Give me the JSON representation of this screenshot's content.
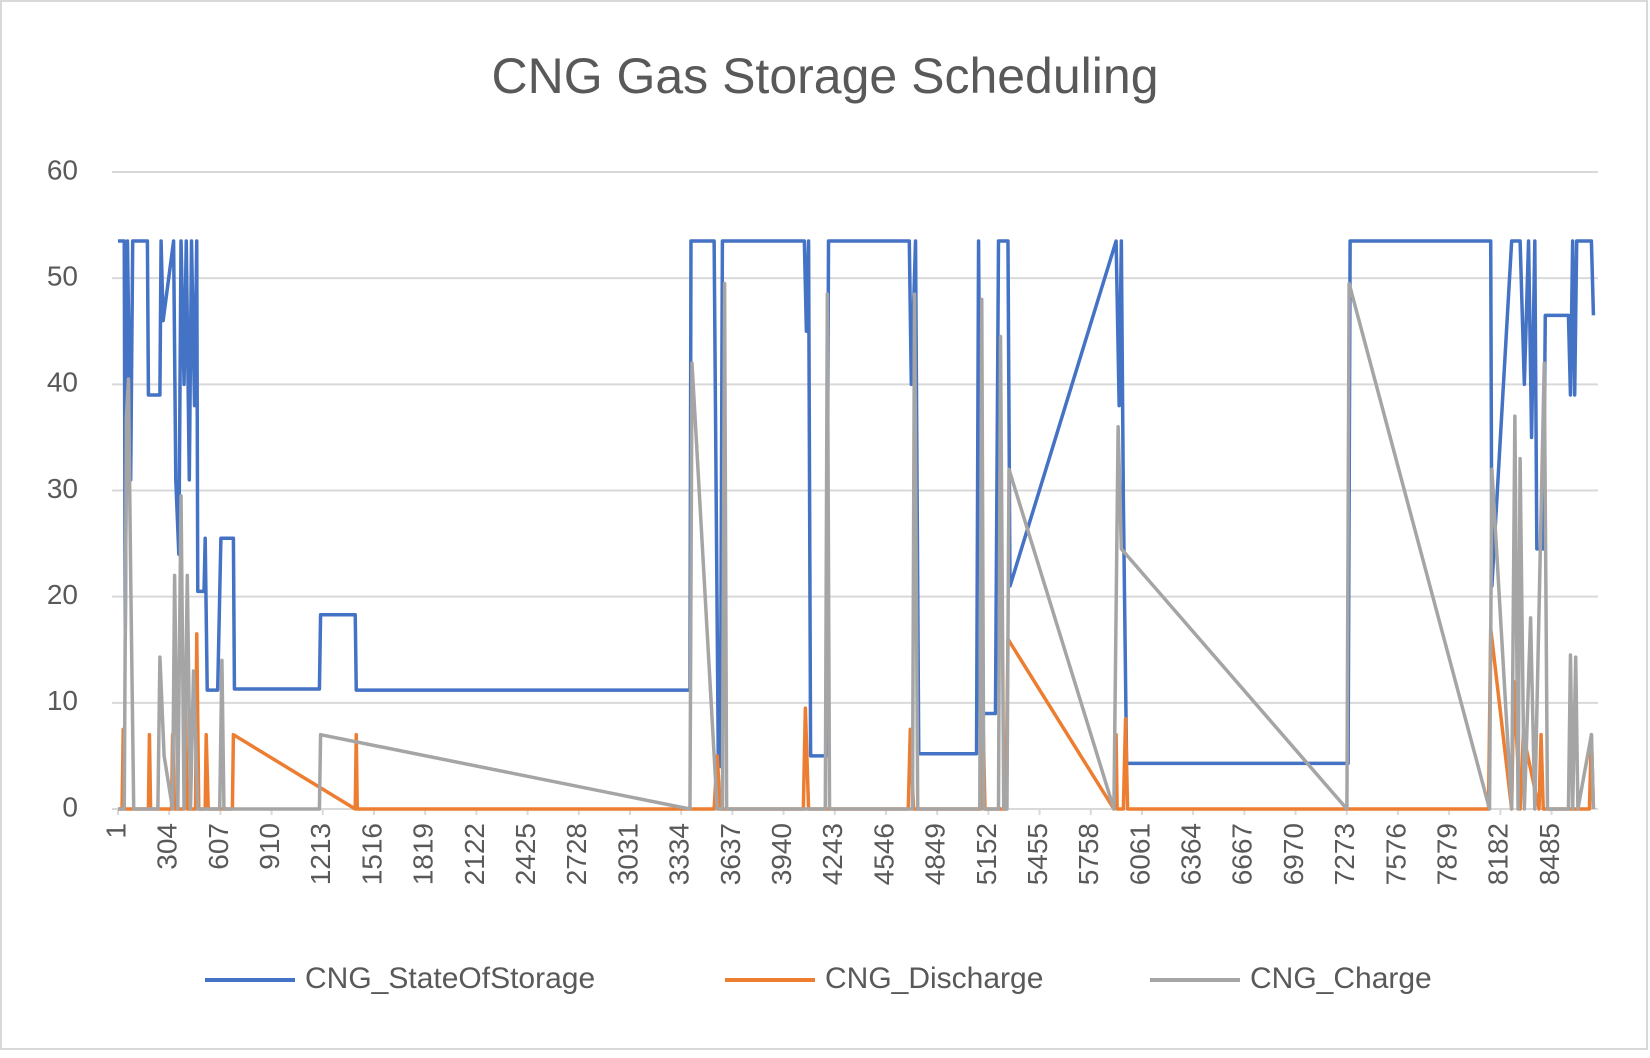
{
  "chart_data": {
    "type": "line",
    "title": "CNG Gas Storage Scheduling",
    "xlim": [
      1,
      8760
    ],
    "xticks": [
      1,
      304,
      607,
      910,
      1213,
      1516,
      1819,
      2122,
      2425,
      2728,
      3031,
      3334,
      3637,
      3940,
      4243,
      4546,
      4849,
      5152,
      5455,
      5758,
      6061,
      6364,
      6667,
      6970,
      7273,
      7576,
      7879,
      8182,
      8485
    ],
    "ylim": [
      0,
      60
    ],
    "yticks": [
      0,
      10,
      20,
      30,
      40,
      50,
      60
    ],
    "grid": true,
    "legend": "bottom",
    "series": [
      {
        "name": "CNG_StateOfStorage",
        "color": "#4472c4",
        "x": [
          1,
          38,
          44,
          57,
          76,
          88,
          175,
          181,
          249,
          256,
          268,
          330,
          343,
          361,
          374,
          392,
          405,
          423,
          436,
          454,
          467,
          473,
          510,
          517,
          529,
          591,
          610,
          684,
          690,
          1193,
          1200,
          1405,
          1411,
          3386,
          3392,
          3529,
          3554,
          3566,
          3578,
          4063,
          4075,
          4088,
          4100,
          4193,
          4206,
          4684,
          4696,
          4721,
          4740,
          5082,
          5094,
          5113,
          5194,
          5212,
          5268,
          5280,
          5908,
          5926,
          5939,
          5951,
          5970,
          7281,
          7293,
          8125,
          8132,
          8249,
          8299,
          8324,
          8349,
          8367,
          8386,
          8398,
          8436,
          8448,
          8585,
          8597,
          8610,
          8622,
          8634,
          8721,
          8733
        ],
        "values": [
          53.5,
          53.5,
          16,
          53.5,
          31,
          53.5,
          53.5,
          39,
          39,
          53.5,
          46,
          53.5,
          31,
          24,
          53.5,
          40,
          53.5,
          31,
          53.5,
          38,
          53.5,
          20.5,
          20.5,
          25.5,
          11.2,
          11.2,
          25.5,
          25.5,
          11.3,
          11.3,
          18.3,
          18.3,
          11.2,
          11.2,
          53.5,
          53.5,
          4,
          4,
          53.5,
          53.5,
          45,
          53.5,
          5,
          5,
          53.5,
          53.5,
          40,
          53.5,
          5.2,
          5.2,
          53.5,
          9,
          9,
          53.5,
          53.5,
          21,
          53.5,
          38,
          53.5,
          29,
          4.3,
          4.3,
          53.5,
          53.5,
          21,
          53.5,
          53.5,
          40,
          53.5,
          35,
          53.5,
          24.5,
          24.5,
          46.5,
          46.5,
          39,
          53.5,
          39,
          53.5,
          53.5,
          46.5
        ]
      },
      {
        "name": "CNG_Discharge",
        "color": "#ed7d31",
        "x": [
          1,
          25,
          32,
          38,
          181,
          187,
          194,
          318,
          324,
          336,
          392,
          399,
          411,
          460,
          467,
          479,
          517,
          523,
          535,
          678,
          684,
          1405,
          1411,
          1417,
          3529,
          3547,
          3566,
          4057,
          4069,
          4088,
          4678,
          4690,
          4709,
          5107,
          5119,
          5132,
          5256,
          5268,
          5895,
          5908,
          5914,
          5951,
          5964,
          5976,
          8112,
          8125,
          8249,
          8262,
          8299,
          8318,
          8411,
          8423,
          8436,
          8709,
          8721,
          8733
        ],
        "values": [
          0,
          0,
          7.5,
          0,
          0,
          7,
          0,
          0,
          7,
          0,
          0,
          10,
          0,
          0,
          16.5,
          0,
          0,
          7,
          0,
          0,
          7,
          0,
          7,
          0,
          0,
          5,
          0,
          0,
          9.5,
          0,
          0,
          7.5,
          0,
          0,
          9.5,
          0,
          0,
          16,
          0,
          7,
          0,
          0,
          8.5,
          0,
          0,
          17,
          0,
          12,
          0,
          7,
          0,
          7,
          0,
          0,
          7,
          0
        ]
      },
      {
        "name": "CNG_Charge",
        "color": "#a5a5a5",
        "x": [
          1,
          38,
          51,
          63,
          76,
          94,
          237,
          249,
          274,
          324,
          336,
          355,
          374,
          392,
          411,
          430,
          448,
          473,
          603,
          616,
          628,
          1193,
          1200,
          3386,
          3398,
          3547,
          3578,
          3591,
          3603,
          4187,
          4199,
          4212,
          4703,
          4715,
          4734,
          5101,
          5113,
          5125,
          5212,
          5224,
          5243,
          5262,
          5274,
          5895,
          5920,
          5939,
          7274,
          7287,
          8118,
          8132,
          8249,
          8268,
          8287,
          8299,
          8324,
          8361,
          8386,
          8442,
          8461,
          8585,
          8597,
          8610,
          8628,
          8641,
          8721,
          8733
        ],
        "values": [
          0,
          0,
          37,
          40.5,
          22,
          0,
          0,
          14.3,
          5,
          0,
          22,
          0,
          29.5,
          0,
          22,
          0,
          13,
          0,
          0,
          14,
          0,
          0,
          7,
          0,
          42,
          0,
          0,
          49.5,
          0,
          0,
          48.5,
          0,
          0,
          48.5,
          0,
          0,
          48,
          0,
          0,
          44.5,
          0,
          0,
          32,
          0,
          36,
          24.5,
          0,
          49.5,
          0,
          32,
          0,
          37,
          0,
          33,
          0,
          18,
          0,
          42,
          0,
          0,
          14.5,
          0,
          14.3,
          0,
          7,
          0
        ]
      }
    ]
  }
}
